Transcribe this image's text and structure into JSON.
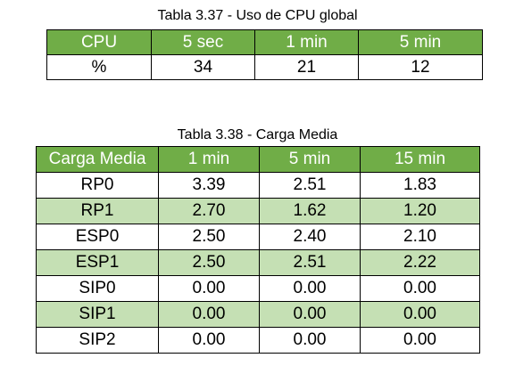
{
  "tables": [
    {
      "caption": "Tabla 3.37 - Uso de CPU global",
      "header_color": "#70ad47",
      "headers": [
        "CPU",
        "5 sec",
        "1 min",
        "5 min"
      ],
      "rows": [
        [
          "%",
          "34",
          "21",
          "12"
        ]
      ]
    },
    {
      "caption": "Tabla 3.38 - Carga Media",
      "header_color": "#70ad47",
      "band_color": "#c5e0b4",
      "headers": [
        "Carga Media",
        "1 min",
        "5 min",
        "15 min"
      ],
      "rows": [
        [
          "RP0",
          "3.39",
          "2.51",
          "1.83"
        ],
        [
          "RP1",
          "2.70",
          "1.62",
          "1.20"
        ],
        [
          "ESP0",
          "2.50",
          "2.40",
          "2.10"
        ],
        [
          "ESP1",
          "2.50",
          "2.51",
          "2.22"
        ],
        [
          "SIP0",
          "0.00",
          "0.00",
          "0.00"
        ],
        [
          "SIP1",
          "0.00",
          "0.00",
          "0.00"
        ],
        [
          "SIP2",
          "0.00",
          "0.00",
          "0.00"
        ]
      ]
    }
  ]
}
